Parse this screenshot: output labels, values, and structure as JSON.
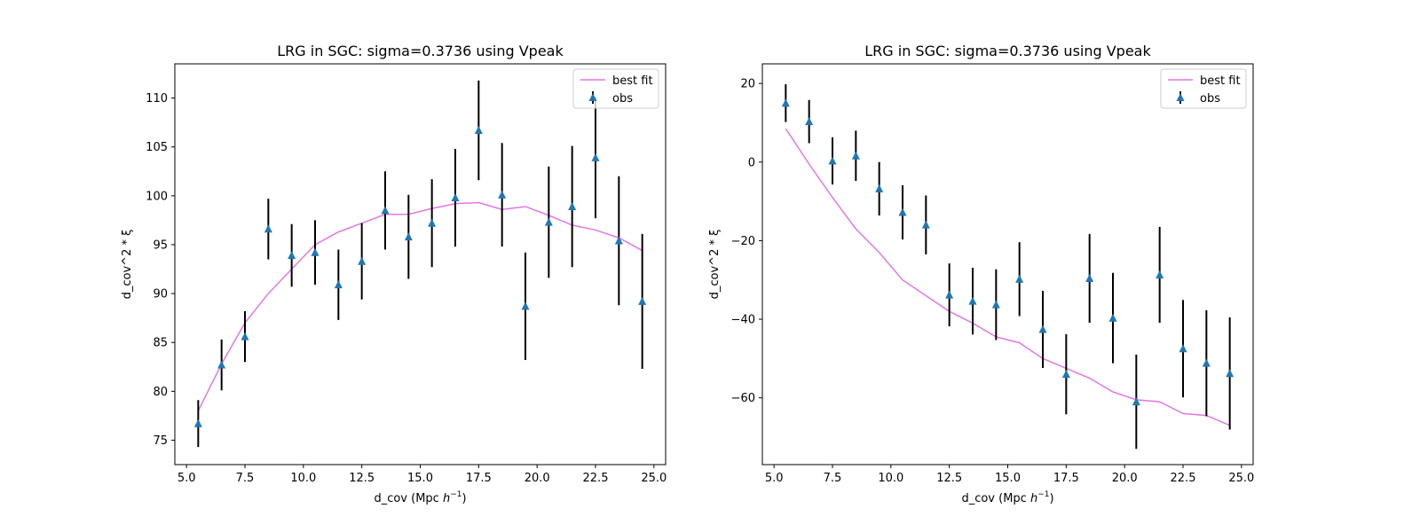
{
  "colors": {
    "fit_line": "#e377e3",
    "marker": "#1f77b4",
    "errorbar": "#000000"
  },
  "chart_data": [
    {
      "type": "scatter",
      "title": "LRG in SGC: sigma=0.3736 using Vpeak",
      "xlabel": "d_cov (Mpc h⁻¹)",
      "xlabel_parts": [
        "d_cov (Mpc ",
        "h",
        "−1",
        ")"
      ],
      "ylabel": "d_cov^2 * ξ",
      "xlim": [
        4.5,
        25.5
      ],
      "ylim": [
        72.5,
        113.5
      ],
      "xticks": [
        5.0,
        7.5,
        10.0,
        12.5,
        15.0,
        17.5,
        20.0,
        22.5,
        25.0
      ],
      "xtick_labels": [
        "5.0",
        "7.5",
        "10.0",
        "12.5",
        "15.0",
        "17.5",
        "20.0",
        "22.5",
        "25.0"
      ],
      "yticks": [
        75,
        80,
        85,
        90,
        95,
        100,
        105,
        110
      ],
      "ytick_labels": [
        "75",
        "80",
        "85",
        "90",
        "95",
        "100",
        "105",
        "110"
      ],
      "legend": {
        "position": "upper right",
        "entries": [
          "best fit",
          "obs"
        ]
      },
      "series": [
        {
          "name": "best fit",
          "kind": "line",
          "x": [
            5.5,
            6.5,
            7.5,
            8.5,
            9.5,
            10.5,
            11.5,
            12.5,
            13.5,
            14.5,
            15.5,
            16.5,
            17.5,
            18.5,
            19.5,
            20.5,
            21.5,
            22.5,
            23.5,
            24.5
          ],
          "y": [
            78.0,
            82.8,
            87.0,
            90.0,
            92.5,
            95.0,
            96.3,
            97.2,
            98.1,
            98.1,
            98.7,
            99.2,
            99.3,
            98.6,
            98.9,
            98.0,
            97.0,
            96.5,
            95.7,
            94.4
          ]
        },
        {
          "name": "obs",
          "kind": "errorbar",
          "x": [
            5.5,
            6.5,
            7.5,
            8.5,
            9.5,
            10.5,
            11.5,
            12.5,
            13.5,
            14.5,
            15.5,
            16.5,
            17.5,
            18.5,
            19.5,
            20.5,
            21.5,
            22.5,
            23.5,
            24.5
          ],
          "y": [
            76.7,
            82.7,
            85.6,
            96.6,
            93.9,
            94.2,
            90.9,
            93.3,
            98.5,
            95.8,
            97.2,
            99.8,
            106.7,
            100.1,
            88.7,
            97.3,
            98.9,
            103.9,
            95.4,
            89.2
          ],
          "yerr": [
            2.4,
            2.6,
            2.6,
            3.1,
            3.2,
            3.3,
            3.6,
            3.9,
            4.0,
            4.3,
            4.5,
            5.0,
            5.1,
            5.3,
            5.5,
            5.7,
            6.2,
            6.2,
            6.6,
            6.9
          ]
        }
      ]
    },
    {
      "type": "scatter",
      "title": "LRG in SGC: sigma=0.3736 using Vpeak",
      "xlabel": "d_cov (Mpc h⁻¹)",
      "xlabel_parts": [
        "d_cov (Mpc ",
        "h",
        "−1",
        ")"
      ],
      "ylabel": "d_cov^2 * ξ",
      "xlim": [
        4.5,
        25.5
      ],
      "ylim": [
        -77.0,
        25.0
      ],
      "xticks": [
        5.0,
        7.5,
        10.0,
        12.5,
        15.0,
        17.5,
        20.0,
        22.5,
        25.0
      ],
      "xtick_labels": [
        "5.0",
        "7.5",
        "10.0",
        "12.5",
        "15.0",
        "17.5",
        "20.0",
        "22.5",
        "25.0"
      ],
      "yticks": [
        -60,
        -40,
        -20,
        0,
        20
      ],
      "ytick_labels": [
        "−60",
        "−40",
        "−20",
        "0",
        "20"
      ],
      "legend": {
        "position": "upper right",
        "entries": [
          "best fit",
          "obs"
        ]
      },
      "series": [
        {
          "name": "best fit",
          "kind": "line",
          "x": [
            5.5,
            6.5,
            7.5,
            8.5,
            9.5,
            10.5,
            11.5,
            12.5,
            13.5,
            14.5,
            15.5,
            16.5,
            17.5,
            18.5,
            19.5,
            20.5,
            21.5,
            22.5,
            23.5,
            24.5
          ],
          "y": [
            8.5,
            -0.5,
            -9.0,
            -17.0,
            -23.0,
            -30.0,
            -34.0,
            -38.0,
            -41.0,
            -44.5,
            -46.0,
            -50.0,
            -52.5,
            -55.0,
            -58.5,
            -60.5,
            -61.0,
            -64.0,
            -64.5,
            -67.0
          ]
        },
        {
          "name": "obs",
          "kind": "errorbar",
          "x": [
            5.5,
            6.5,
            7.5,
            8.5,
            9.5,
            10.5,
            11.5,
            12.5,
            13.5,
            14.5,
            15.5,
            16.5,
            17.5,
            18.5,
            19.5,
            20.5,
            21.5,
            22.5,
            23.5,
            24.5
          ],
          "y": [
            15.0,
            10.3,
            0.3,
            1.6,
            -6.8,
            -12.8,
            -16.0,
            -33.8,
            -35.4,
            -36.3,
            -29.8,
            -42.6,
            -54.0,
            -29.6,
            -39.7,
            -61.0,
            -28.7,
            -47.5,
            -51.2,
            -53.8
          ],
          "yerr": [
            4.8,
            5.5,
            6.0,
            6.4,
            6.8,
            6.9,
            7.5,
            8.0,
            8.5,
            9.0,
            9.4,
            9.8,
            10.2,
            11.3,
            11.5,
            12.0,
            12.2,
            12.4,
            13.5,
            14.3
          ]
        }
      ]
    }
  ]
}
